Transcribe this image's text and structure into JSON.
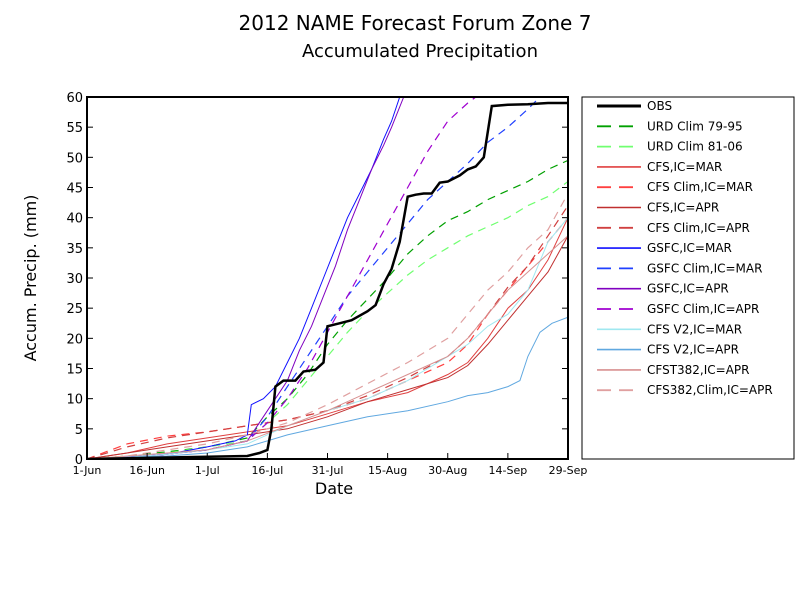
{
  "chart_data": {
    "type": "line",
    "title": "2012 NAME Forecast Forum Zone 7",
    "subtitle": "Accumulated Precipitation",
    "xlabel": "Date",
    "ylabel": "Accum. Precip. (mm)",
    "ylim": [
      0,
      60
    ],
    "yticks": [
      0,
      5,
      10,
      15,
      20,
      25,
      30,
      35,
      40,
      45,
      50,
      55,
      60
    ],
    "xlim_days": [
      0,
      120
    ],
    "xticks": [
      {
        "day": 0,
        "label": "1-Jun"
      },
      {
        "day": 15,
        "label": "16-Jun"
      },
      {
        "day": 30,
        "label": "1-Jul"
      },
      {
        "day": 45,
        "label": "16-Jul"
      },
      {
        "day": 60,
        "label": "31-Jul"
      },
      {
        "day": 75,
        "label": "15-Aug"
      },
      {
        "day": 90,
        "label": "30-Aug"
      },
      {
        "day": 105,
        "label": "14-Sep"
      },
      {
        "day": 120,
        "label": "29-Sep"
      }
    ],
    "legend_position": "right",
    "series": [
      {
        "name": "OBS",
        "color": "#000000",
        "dash": "solid",
        "width": 2.5,
        "points": [
          [
            0,
            0
          ],
          [
            40,
            0.5
          ],
          [
            43,
            1
          ],
          [
            45,
            1.5
          ],
          [
            46,
            5
          ],
          [
            47,
            12
          ],
          [
            49,
            13
          ],
          [
            52,
            13
          ],
          [
            54,
            14.5
          ],
          [
            57,
            14.8
          ],
          [
            59,
            16
          ],
          [
            60,
            22
          ],
          [
            63,
            22.5
          ],
          [
            66,
            23
          ],
          [
            70,
            24.5
          ],
          [
            72,
            25.5
          ],
          [
            74,
            29
          ],
          [
            76,
            31.5
          ],
          [
            78,
            36
          ],
          [
            80,
            43.5
          ],
          [
            82,
            43.8
          ],
          [
            84,
            44
          ],
          [
            86,
            44
          ],
          [
            88,
            45.8
          ],
          [
            90,
            46
          ],
          [
            93,
            47
          ],
          [
            95,
            48
          ],
          [
            97,
            48.5
          ],
          [
            99,
            50
          ],
          [
            101,
            58.5
          ],
          [
            105,
            58.7
          ],
          [
            110,
            58.8
          ],
          [
            115,
            59
          ],
          [
            120,
            59
          ]
        ]
      },
      {
        "name": "URD Clim 79-95",
        "color": "#00a000",
        "dash": "8,6",
        "width": 1.2,
        "points": [
          [
            0,
            0
          ],
          [
            10,
            0.5
          ],
          [
            20,
            1.2
          ],
          [
            30,
            2
          ],
          [
            40,
            3.5
          ],
          [
            45,
            7
          ],
          [
            50,
            10
          ],
          [
            55,
            14
          ],
          [
            60,
            19
          ],
          [
            65,
            23
          ],
          [
            70,
            26.5
          ],
          [
            75,
            30
          ],
          [
            80,
            34
          ],
          [
            85,
            37
          ],
          [
            90,
            39.5
          ],
          [
            95,
            41
          ],
          [
            100,
            43
          ],
          [
            105,
            44.5
          ],
          [
            110,
            46
          ],
          [
            115,
            48
          ],
          [
            120,
            49.5
          ]
        ]
      },
      {
        "name": "URD Clim 81-06",
        "color": "#70ff70",
        "dash": "8,6",
        "width": 1.2,
        "points": [
          [
            0,
            0
          ],
          [
            10,
            0.5
          ],
          [
            20,
            1
          ],
          [
            30,
            2
          ],
          [
            40,
            3
          ],
          [
            45,
            6
          ],
          [
            50,
            9
          ],
          [
            55,
            13
          ],
          [
            60,
            17
          ],
          [
            65,
            21
          ],
          [
            70,
            24.5
          ],
          [
            75,
            27.5
          ],
          [
            80,
            30.5
          ],
          [
            85,
            33
          ],
          [
            90,
            35
          ],
          [
            95,
            37
          ],
          [
            100,
            38.5
          ],
          [
            105,
            40
          ],
          [
            110,
            42
          ],
          [
            115,
            43.5
          ],
          [
            120,
            46
          ]
        ]
      },
      {
        "name": "CFS,IC=MAR",
        "color": "#e04040",
        "dash": "solid",
        "width": 1,
        "points": [
          [
            0,
            0
          ],
          [
            10,
            1
          ],
          [
            20,
            2.5
          ],
          [
            30,
            3.5
          ],
          [
            40,
            4.5
          ],
          [
            50,
            5.5
          ],
          [
            60,
            7.5
          ],
          [
            70,
            9.5
          ],
          [
            80,
            11
          ],
          [
            90,
            14
          ],
          [
            95,
            16
          ],
          [
            100,
            20
          ],
          [
            105,
            25
          ],
          [
            110,
            28
          ],
          [
            115,
            33
          ],
          [
            120,
            40
          ]
        ]
      },
      {
        "name": "CFS Clim,IC=MAR",
        "color": "#ff4040",
        "dash": "8,6",
        "width": 1.2,
        "points": [
          [
            0,
            0
          ],
          [
            10,
            2.5
          ],
          [
            20,
            3.8
          ],
          [
            30,
            4.5
          ],
          [
            40,
            5.5
          ],
          [
            50,
            6.5
          ],
          [
            60,
            8
          ],
          [
            70,
            10
          ],
          [
            80,
            13
          ],
          [
            90,
            16
          ],
          [
            95,
            19
          ],
          [
            100,
            24
          ],
          [
            105,
            28
          ],
          [
            110,
            32
          ],
          [
            115,
            36
          ],
          [
            120,
            40
          ]
        ]
      },
      {
        "name": "CFS,IC=APR",
        "color": "#c03030",
        "dash": "solid",
        "width": 1,
        "points": [
          [
            0,
            0
          ],
          [
            10,
            1
          ],
          [
            20,
            2
          ],
          [
            30,
            3
          ],
          [
            40,
            4
          ],
          [
            50,
            5
          ],
          [
            60,
            7
          ],
          [
            70,
            9.5
          ],
          [
            80,
            11.5
          ],
          [
            90,
            13.5
          ],
          [
            95,
            15.5
          ],
          [
            100,
            19
          ],
          [
            105,
            23
          ],
          [
            110,
            27
          ],
          [
            115,
            31
          ],
          [
            120,
            37
          ]
        ]
      },
      {
        "name": "CFS Clim,IC=APR",
        "color": "#d04040",
        "dash": "8,6",
        "width": 1.2,
        "points": [
          [
            0,
            0
          ],
          [
            10,
            2
          ],
          [
            20,
            3.5
          ],
          [
            30,
            4.5
          ],
          [
            40,
            5.5
          ],
          [
            50,
            6.5
          ],
          [
            60,
            8
          ],
          [
            70,
            10.5
          ],
          [
            80,
            13.5
          ],
          [
            90,
            17
          ],
          [
            95,
            20
          ],
          [
            100,
            24
          ],
          [
            105,
            28.5
          ],
          [
            110,
            32
          ],
          [
            115,
            37
          ],
          [
            120,
            42
          ]
        ]
      },
      {
        "name": "GSFC,IC=MAR",
        "color": "#1010ff",
        "dash": "solid",
        "width": 1,
        "points": [
          [
            0,
            0
          ],
          [
            10,
            0.3
          ],
          [
            20,
            0.8
          ],
          [
            30,
            2
          ],
          [
            37,
            3
          ],
          [
            40,
            4
          ],
          [
            41,
            9
          ],
          [
            44,
            10
          ],
          [
            47,
            12
          ],
          [
            50,
            16
          ],
          [
            53,
            20
          ],
          [
            56,
            25
          ],
          [
            59,
            30
          ],
          [
            62,
            35
          ],
          [
            65,
            40
          ],
          [
            68,
            44
          ],
          [
            71,
            48
          ],
          [
            74,
            53
          ],
          [
            76,
            56
          ],
          [
            78,
            60
          ]
        ]
      },
      {
        "name": "GSFC Clim,IC=MAR",
        "color": "#2040ff",
        "dash": "8,6",
        "width": 1.2,
        "points": [
          [
            0,
            0
          ],
          [
            10,
            0.3
          ],
          [
            20,
            0.8
          ],
          [
            30,
            1.5
          ],
          [
            40,
            3
          ],
          [
            45,
            7
          ],
          [
            50,
            12
          ],
          [
            55,
            17
          ],
          [
            60,
            22
          ],
          [
            65,
            27
          ],
          [
            70,
            31
          ],
          [
            75,
            35
          ],
          [
            80,
            39
          ],
          [
            85,
            43
          ],
          [
            90,
            46
          ],
          [
            95,
            49
          ],
          [
            100,
            52.5
          ],
          [
            105,
            55
          ],
          [
            110,
            58
          ],
          [
            113,
            60
          ]
        ]
      },
      {
        "name": "GSFC,IC=APR",
        "color": "#8000c0",
        "dash": "solid",
        "width": 1,
        "points": [
          [
            0,
            0
          ],
          [
            10,
            0.3
          ],
          [
            20,
            0.8
          ],
          [
            30,
            1.5
          ],
          [
            40,
            3
          ],
          [
            45,
            8
          ],
          [
            50,
            13
          ],
          [
            53,
            18
          ],
          [
            56,
            22
          ],
          [
            59,
            27
          ],
          [
            62,
            32
          ],
          [
            65,
            38
          ],
          [
            68,
            43
          ],
          [
            71,
            48
          ],
          [
            74,
            52
          ],
          [
            76,
            55
          ],
          [
            79,
            60
          ]
        ]
      },
      {
        "name": "GSFC Clim,IC=APR",
        "color": "#a000d0",
        "dash": "8,6",
        "width": 1.2,
        "points": [
          [
            0,
            0
          ],
          [
            10,
            0.3
          ],
          [
            20,
            0.8
          ],
          [
            30,
            1.5
          ],
          [
            40,
            3
          ],
          [
            45,
            6
          ],
          [
            50,
            10
          ],
          [
            55,
            15
          ],
          [
            60,
            21
          ],
          [
            65,
            27
          ],
          [
            70,
            33
          ],
          [
            75,
            39
          ],
          [
            80,
            45
          ],
          [
            85,
            51
          ],
          [
            90,
            56
          ],
          [
            95,
            59
          ],
          [
            97,
            60
          ]
        ]
      },
      {
        "name": "CFS V2,IC=MAR",
        "color": "#a0e8f0",
        "dash": "solid",
        "width": 1,
        "points": [
          [
            0,
            0
          ],
          [
            10,
            0.3
          ],
          [
            20,
            0.8
          ],
          [
            30,
            1.5
          ],
          [
            40,
            2.5
          ],
          [
            50,
            5.5
          ],
          [
            60,
            8
          ],
          [
            70,
            10
          ],
          [
            80,
            13
          ],
          [
            85,
            15
          ],
          [
            90,
            17
          ],
          [
            95,
            19
          ],
          [
            100,
            22
          ],
          [
            105,
            24
          ],
          [
            110,
            28
          ],
          [
            115,
            36
          ],
          [
            120,
            40
          ]
        ]
      },
      {
        "name": "CFS V2,IC=APR",
        "color": "#60a8e0",
        "dash": "solid",
        "width": 1,
        "points": [
          [
            0,
            0
          ],
          [
            10,
            0.3
          ],
          [
            20,
            0.5
          ],
          [
            30,
            1
          ],
          [
            40,
            2
          ],
          [
            50,
            4
          ],
          [
            60,
            5.5
          ],
          [
            70,
            7
          ],
          [
            80,
            8
          ],
          [
            90,
            9.5
          ],
          [
            95,
            10.5
          ],
          [
            100,
            11
          ],
          [
            105,
            12
          ],
          [
            108,
            13
          ],
          [
            110,
            17
          ],
          [
            113,
            21
          ],
          [
            116,
            22.5
          ],
          [
            120,
            23.5
          ]
        ]
      },
      {
        "name": "CFST382,IC=APR",
        "color": "#d89090",
        "dash": "solid",
        "width": 1,
        "points": [
          [
            0,
            0
          ],
          [
            10,
            0.5
          ],
          [
            20,
            1
          ],
          [
            30,
            1.5
          ],
          [
            40,
            3
          ],
          [
            50,
            5.5
          ],
          [
            60,
            8
          ],
          [
            70,
            11
          ],
          [
            80,
            14
          ],
          [
            90,
            17
          ],
          [
            95,
            20
          ],
          [
            100,
            24
          ],
          [
            105,
            28
          ],
          [
            110,
            31
          ],
          [
            115,
            34
          ],
          [
            120,
            37
          ]
        ]
      },
      {
        "name": "CFS382,Clim,IC=APR",
        "color": "#e0a0a0",
        "dash": "8,6",
        "width": 1.2,
        "points": [
          [
            0,
            0
          ],
          [
            10,
            0.5
          ],
          [
            20,
            1.5
          ],
          [
            30,
            2.5
          ],
          [
            40,
            4
          ],
          [
            50,
            6
          ],
          [
            60,
            9
          ],
          [
            70,
            12.5
          ],
          [
            80,
            16
          ],
          [
            90,
            20
          ],
          [
            95,
            24
          ],
          [
            100,
            28
          ],
          [
            105,
            31
          ],
          [
            110,
            35
          ],
          [
            115,
            38
          ],
          [
            120,
            44
          ]
        ]
      }
    ]
  }
}
